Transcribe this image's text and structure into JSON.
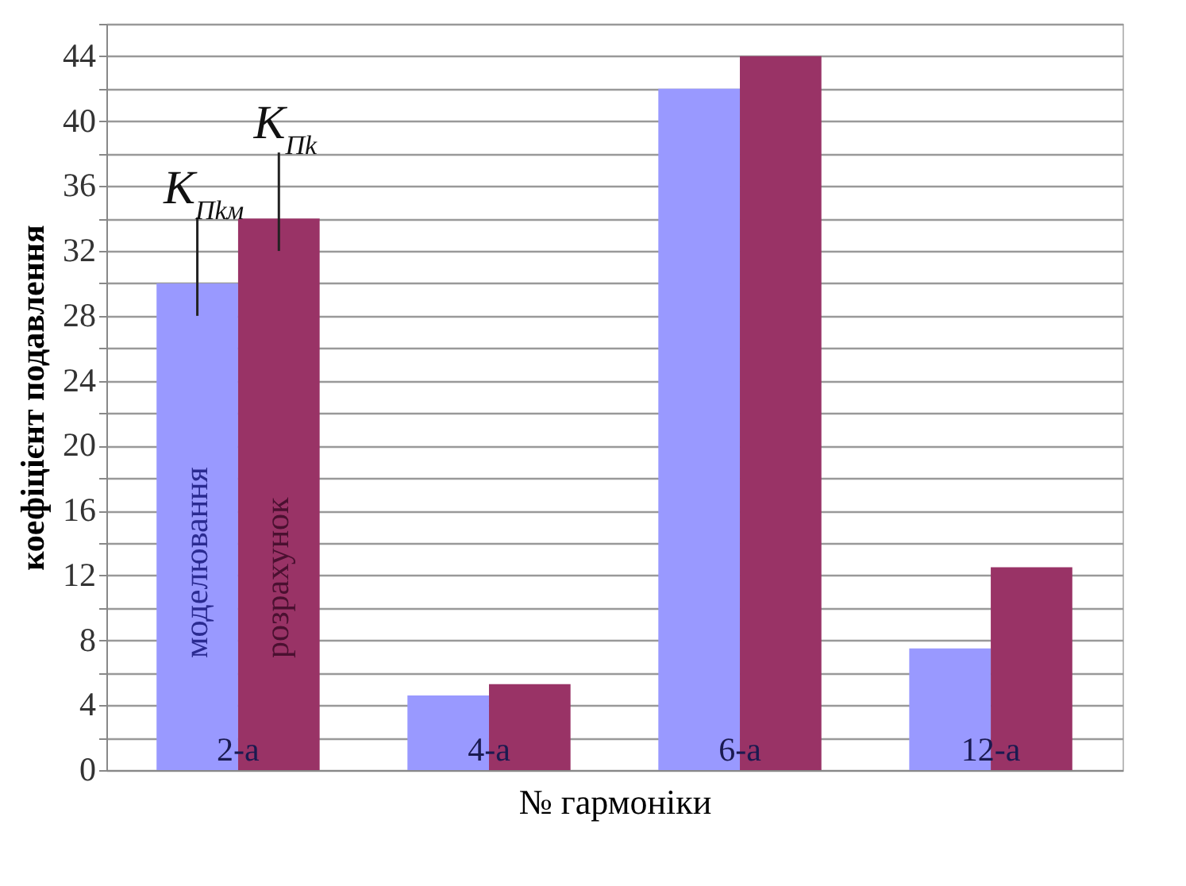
{
  "chart_data": {
    "type": "bar",
    "xlabel": "№ гармоніки",
    "ylabel": "коефіцієнт  подавлення",
    "categories": [
      "2-а",
      "4-а",
      "6-а",
      "12-а"
    ],
    "series": [
      {
        "name": "моделювання",
        "color": "#9999ff",
        "values": [
          30,
          4.6,
          42,
          7.5
        ]
      },
      {
        "name": "розрахунок",
        "color": "#993366",
        "values": [
          34,
          5.3,
          44,
          12.5
        ]
      }
    ],
    "annotations": [
      {
        "text": "K$_{Пkм}$",
        "x": "2-а",
        "y": 28
      },
      {
        "text": "K$_{Пk}$",
        "x": "2-а",
        "y": 32
      }
    ],
    "ylim": [
      0,
      46
    ],
    "yticks": [
      0,
      {
        "value": 2,
        "label": null
      },
      4,
      {
        "value": 6,
        "label": null
      },
      8,
      {
        "value": 10,
        "label": null
      },
      12,
      {
        "value": 14,
        "label": null
      },
      16,
      {
        "value": 18,
        "label": null
      },
      20,
      {
        "value": 22,
        "label": null
      },
      24,
      {
        "value": 26,
        "label": null
      },
      28,
      {
        "value": 30,
        "label": null
      },
      32,
      {
        "value": 34,
        "label": null
      },
      36,
      {
        "value": 38,
        "label": null
      },
      40,
      {
        "value": 42,
        "label": null
      },
      44,
      {
        "value": 46,
        "label": null
      }
    ],
    "grid": "y",
    "legend": false
  }
}
